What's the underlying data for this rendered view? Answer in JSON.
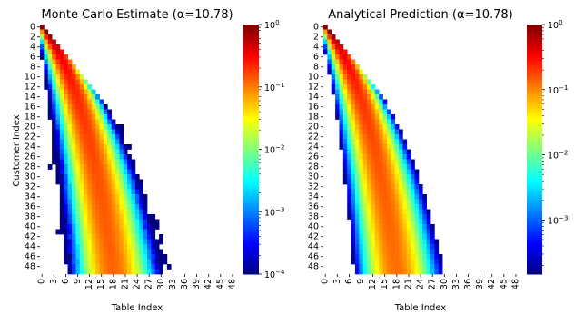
{
  "chart_data": [
    {
      "type": "heatmap",
      "title": "Monte Carlo Estimate (α=10.78)",
      "xlabel": "Table Index",
      "ylabel": "Customer Index",
      "rows": 50,
      "cols": 50,
      "x_ticks": [
        "0",
        "3",
        "6",
        "9",
        "12",
        "15",
        "18",
        "21",
        "24",
        "27",
        "30",
        "33",
        "36",
        "39",
        "42",
        "45",
        "48"
      ],
      "y_ticks": [
        "0",
        "2",
        "4",
        "6",
        "8",
        "10",
        "12",
        "14",
        "16",
        "18",
        "20",
        "22",
        "24",
        "26",
        "28",
        "30",
        "32",
        "34",
        "36",
        "38",
        "40",
        "42",
        "44",
        "46",
        "48"
      ],
      "alpha": 10.78,
      "estimate": "monte_carlo",
      "colorbar": {
        "scale": "log",
        "min": 0.0001,
        "max": 1,
        "colormap": "jet",
        "ticks": [
          "10^0",
          "10^-1",
          "10^-2",
          "10^-3",
          "10^-4"
        ]
      },
      "grid": false
    },
    {
      "type": "heatmap",
      "title": "Analytical Prediction (α=10.78)",
      "xlabel": "Table Index",
      "ylabel": "",
      "rows": 50,
      "cols": 50,
      "x_ticks": [
        "0",
        "3",
        "6",
        "9",
        "12",
        "15",
        "18",
        "21",
        "24",
        "27",
        "30",
        "33",
        "36",
        "39",
        "42",
        "45",
        "48"
      ],
      "y_ticks": [
        "0",
        "2",
        "4",
        "6",
        "8",
        "10",
        "12",
        "14",
        "16",
        "18",
        "20",
        "22",
        "24",
        "26",
        "28",
        "30",
        "32",
        "34",
        "36",
        "38",
        "40",
        "42",
        "44",
        "46",
        "48"
      ],
      "alpha": 10.78,
      "estimate": "analytical",
      "colorbar": {
        "scale": "log",
        "min": 0.00015,
        "max": 1,
        "colormap": "jet",
        "ticks": [
          "10^0",
          "10^-1",
          "10^-2",
          "10^-3"
        ]
      },
      "grid": false
    }
  ]
}
